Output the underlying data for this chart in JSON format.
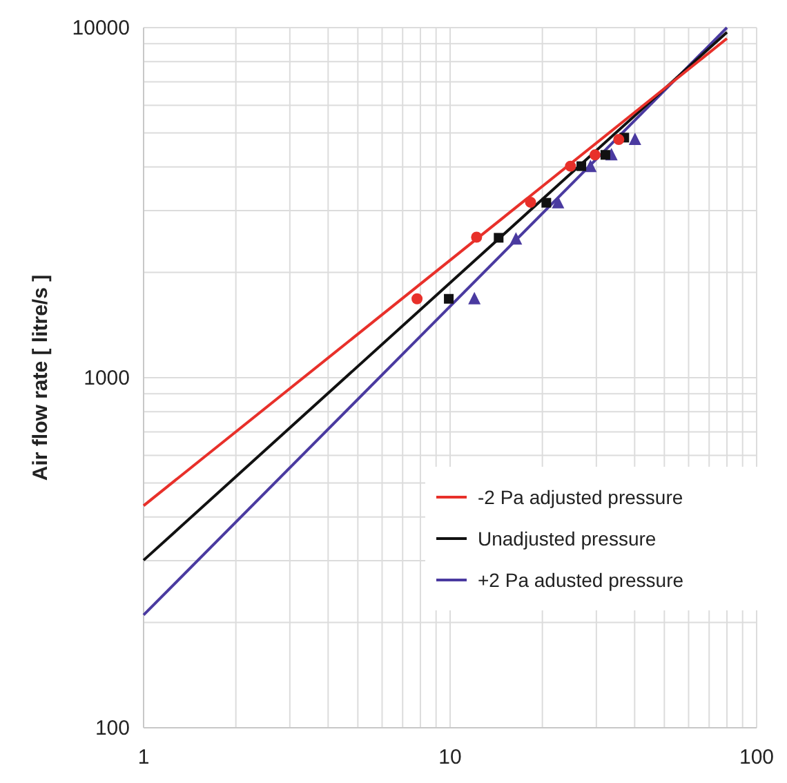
{
  "chart_data": {
    "type": "line",
    "ylabel": "Air flow rate  [ litre/s ]",
    "log": "xy",
    "grid": true,
    "legend": "right",
    "xlim": [
      1,
      100
    ],
    "ylim": [
      100,
      10000
    ],
    "xticks": [
      1,
      {
        "value": 2,
        "label": null
      },
      {
        "value": 3,
        "label": null
      },
      {
        "value": 4,
        "label": null
      },
      {
        "value": 5,
        "label": null
      },
      {
        "value": 6,
        "label": null
      },
      {
        "value": 7,
        "label": null
      },
      {
        "value": 8,
        "label": null
      },
      {
        "value": 9,
        "label": null
      },
      10,
      {
        "value": 20,
        "label": null
      },
      {
        "value": 30,
        "label": null
      },
      {
        "value": 40,
        "label": null
      },
      {
        "value": 50,
        "label": null
      },
      {
        "value": 60,
        "label": null
      },
      {
        "value": 70,
        "label": null
      },
      {
        "value": 80,
        "label": null
      },
      {
        "value": 90,
        "label": null
      },
      100
    ],
    "yticks": [
      100,
      {
        "value": 200,
        "label": null
      },
      {
        "value": 300,
        "label": null
      },
      {
        "value": 400,
        "label": null
      },
      {
        "value": 500,
        "label": null
      },
      {
        "value": 600,
        "label": null
      },
      {
        "value": 700,
        "label": null
      },
      {
        "value": 800,
        "label": null
      },
      {
        "value": 900,
        "label": null
      },
      1000,
      {
        "value": 2000,
        "label": null
      },
      {
        "value": 3000,
        "label": null
      },
      {
        "value": 4000,
        "label": null
      },
      {
        "value": 5000,
        "label": null
      },
      {
        "value": 6000,
        "label": null
      },
      {
        "value": 7000,
        "label": null
      },
      {
        "value": 8000,
        "label": null
      },
      {
        "value": 9000,
        "label": null
      },
      10000
    ],
    "series": [
      {
        "type": "scatter",
        "marker": "circle",
        "color": "#e8302a",
        "x": [
          7.8,
          12.2,
          18.3,
          24.7,
          29.7,
          35.5
        ],
        "values": [
          1680,
          2520,
          3170,
          4020,
          4330,
          4790
        ]
      },
      {
        "type": "scatter",
        "marker": "square",
        "color": "#111111",
        "x": [
          9.9,
          14.4,
          20.6,
          26.8,
          32.1,
          37
        ],
        "values": [
          1680,
          2510,
          3160,
          4020,
          4330,
          4850
        ]
      },
      {
        "type": "scatter",
        "marker": "triangle",
        "color": "#4a3aa0",
        "x": [
          12.0,
          16.4,
          22.5,
          28.7,
          33.6,
          40.1
        ],
        "values": [
          1680,
          2490,
          3160,
          4010,
          4330,
          4790
        ]
      },
      {
        "name": "-2 Pa adjusted pressure",
        "color": "#e8302a",
        "x": [
          1,
          80
        ],
        "values": [
          431,
          9310
        ]
      },
      {
        "name": "Unadjusted pressure",
        "color": "#111111",
        "x": [
          1,
          80
        ],
        "values": [
          301,
          9700
        ]
      },
      {
        "name": "+2 Pa adusted pressure",
        "color": "#4a3aa0",
        "x": [
          1,
          80
        ],
        "values": [
          210,
          10000
        ]
      }
    ]
  }
}
